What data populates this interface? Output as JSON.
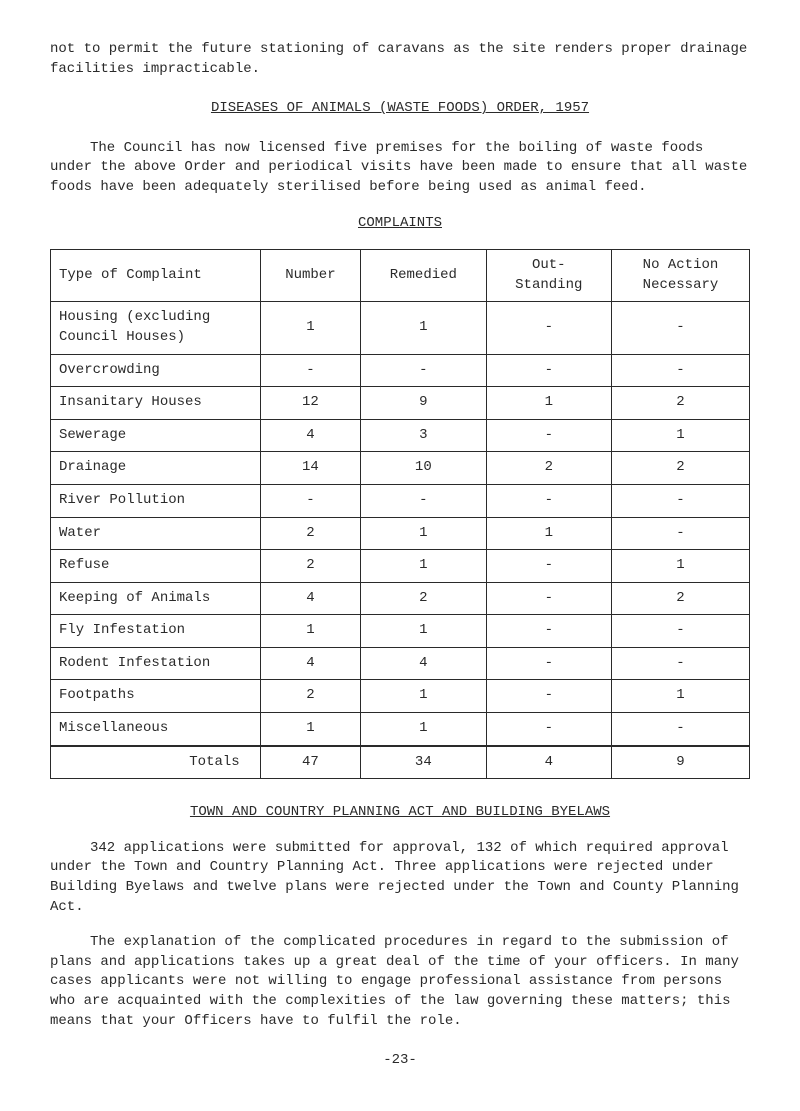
{
  "intro": {
    "p1": "not to permit the future stationing of caravans as the site renders proper drainage facilities impracticable.",
    "heading1": "DISEASES OF ANIMALS (WASTE FOODS) ORDER, 1957",
    "p2": "The Council has now licensed five premises for the boiling of waste foods under the above Order and periodical visits have been made to ensure that all waste foods have been adequately sterilised before being used as animal feed.",
    "heading2": "COMPLAINTS"
  },
  "table": {
    "headers": {
      "type": "Type of Complaint",
      "number": "Number",
      "remedied": "Remedied",
      "outstanding": "Out-\nStanding",
      "noaction": "No Action\nNecessary"
    },
    "rows": [
      {
        "type": "Housing (excluding Council Houses)",
        "number": "1",
        "remedied": "1",
        "outstanding": "-",
        "noaction": "-"
      },
      {
        "type": "Overcrowding",
        "number": "-",
        "remedied": "-",
        "outstanding": "-",
        "noaction": "-"
      },
      {
        "type": "Insanitary Houses",
        "number": "12",
        "remedied": "9",
        "outstanding": "1",
        "noaction": "2"
      },
      {
        "type": "Sewerage",
        "number": "4",
        "remedied": "3",
        "outstanding": "-",
        "noaction": "1"
      },
      {
        "type": "Drainage",
        "number": "14",
        "remedied": "10",
        "outstanding": "2",
        "noaction": "2"
      },
      {
        "type": "River Pollution",
        "number": "-",
        "remedied": "-",
        "outstanding": "-",
        "noaction": "-"
      },
      {
        "type": "Water",
        "number": "2",
        "remedied": "1",
        "outstanding": "1",
        "noaction": "-"
      },
      {
        "type": "Refuse",
        "number": "2",
        "remedied": "1",
        "outstanding": "-",
        "noaction": "1"
      },
      {
        "type": "Keeping of Animals",
        "number": "4",
        "remedied": "2",
        "outstanding": "-",
        "noaction": "2"
      },
      {
        "type": "Fly Infestation",
        "number": "1",
        "remedied": "1",
        "outstanding": "-",
        "noaction": "-"
      },
      {
        "type": "Rodent Infestation",
        "number": "4",
        "remedied": "4",
        "outstanding": "-",
        "noaction": "-"
      },
      {
        "type": "Footpaths",
        "number": "2",
        "remedied": "1",
        "outstanding": "-",
        "noaction": "1"
      },
      {
        "type": "Miscellaneous",
        "number": "1",
        "remedied": "1",
        "outstanding": "-",
        "noaction": "-"
      }
    ],
    "totals": {
      "label": "Totals",
      "number": "47",
      "remedied": "34",
      "outstanding": "4",
      "noaction": "9"
    }
  },
  "footer": {
    "heading": "TOWN AND COUNTRY PLANNING ACT AND BUILDING BYELAWS",
    "p1": "342 applications were submitted for approval, 132 of which required approval under the Town and Country Planning Act. Three applications were rejected under Building Byelaws and twelve plans were rejected under the Town and County Planning Act.",
    "p2": "The explanation of the complicated procedures in regard to the submission of plans and applications takes up a great deal of the time of your officers. In many cases applicants were not willing to engage professional assistance from persons who are acquainted with the complexities of the law governing these matters; this means that your Officers have to fulfil the role.",
    "pagenum": "-23-"
  }
}
